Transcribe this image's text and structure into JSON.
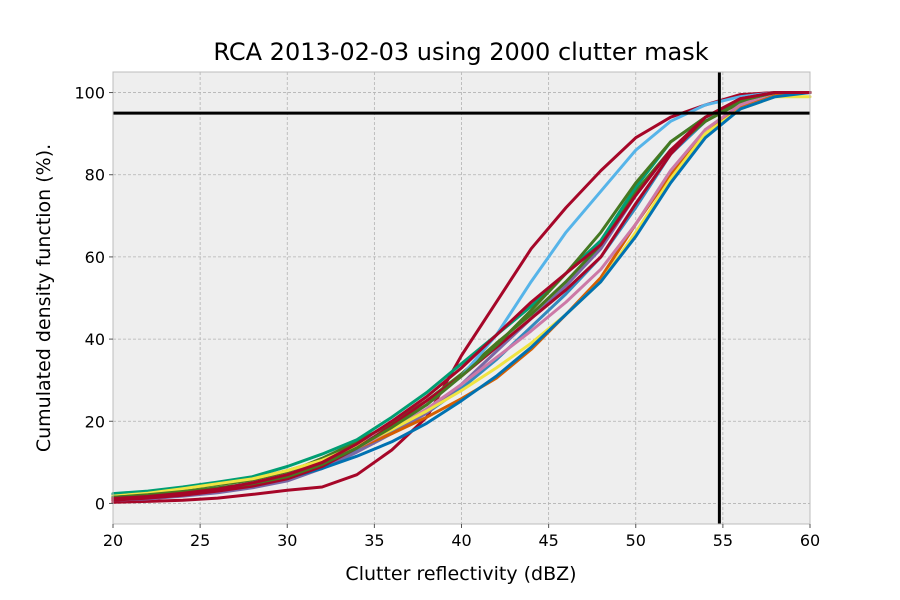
{
  "chart_data": {
    "type": "line",
    "title": "RCA 2013-02-03 using 2000 clutter mask",
    "xlabel": "Clutter reflectivity (dBZ)",
    "ylabel": "Cumulated density function (%).",
    "xlim": [
      20,
      60
    ],
    "ylim": [
      -5,
      105
    ],
    "xticks": [
      20,
      25,
      30,
      35,
      40,
      45,
      50,
      55,
      60
    ],
    "yticks": [
      0,
      20,
      40,
      60,
      80,
      100
    ],
    "grid": true,
    "legend": "none",
    "reference_lines": {
      "horizontal_y": 95,
      "vertical_x": 54.8,
      "color": "#000000"
    },
    "x": [
      20,
      22,
      24,
      26,
      28,
      30,
      32,
      34,
      36,
      38,
      40,
      42,
      44,
      46,
      48,
      50,
      52,
      54,
      56,
      58,
      60
    ],
    "series": [
      {
        "color": "#348ABD",
        "values": [
          1.2,
          1.5,
          2.2,
          3,
          4,
          6,
          9,
          13,
          17.5,
          22,
          28,
          35,
          43,
          51,
          60,
          72,
          85,
          93,
          98,
          100,
          100
        ]
      },
      {
        "color": "#A60628",
        "values": [
          0.3,
          0.5,
          0.8,
          1.3,
          2.2,
          3.2,
          4,
          7,
          13,
          21,
          36,
          49,
          62,
          72,
          81,
          89,
          94,
          97,
          99.5,
          100,
          100
        ]
      },
      {
        "color": "#7A68A6",
        "values": [
          0.8,
          1.1,
          1.8,
          2.6,
          3.8,
          5.5,
          8.5,
          12.5,
          17,
          22,
          29,
          37,
          45,
          53,
          62,
          75,
          86,
          93,
          98,
          100,
          100
        ]
      },
      {
        "color": "#467821",
        "values": [
          2,
          2.6,
          3.6,
          4.6,
          5.6,
          7.5,
          11,
          15,
          19.5,
          25,
          31.5,
          39,
          46,
          54,
          63,
          76,
          86,
          93,
          97.5,
          100,
          100
        ]
      },
      {
        "color": "#D55E00",
        "values": [
          1.6,
          2.5,
          3.8,
          5,
          6,
          8,
          10.5,
          13.5,
          17,
          21,
          25.5,
          30.5,
          37.5,
          46,
          55,
          68,
          80,
          90,
          96.5,
          99.5,
          100
        ]
      },
      {
        "color": "#CC79A7",
        "values": [
          1,
          1.4,
          2.1,
          3,
          4.5,
          6.5,
          9.5,
          13.5,
          18,
          23,
          29,
          35.5,
          42,
          49,
          57,
          68,
          81,
          91,
          97,
          100,
          100
        ]
      },
      {
        "color": "#56B4E9",
        "values": [
          1.4,
          1.9,
          2.6,
          3.6,
          5,
          7,
          10,
          14,
          18.5,
          24,
          31,
          41,
          54,
          66,
          76,
          86,
          93,
          97,
          99,
          100,
          100
        ]
      },
      {
        "color": "#009E73",
        "values": [
          2.4,
          3,
          4,
          5.2,
          6.5,
          9,
          12,
          15.5,
          21,
          27,
          34,
          41,
          48,
          56,
          64,
          77,
          88,
          94,
          98,
          100,
          100
        ]
      },
      {
        "color": "#F0E442",
        "values": [
          1.8,
          2.5,
          3.6,
          4.8,
          6,
          8,
          10.5,
          14,
          18,
          22.5,
          27.5,
          33,
          39,
          46,
          54,
          66,
          79,
          90,
          96,
          99,
          99
        ]
      },
      {
        "color": "#0072B2",
        "values": [
          1.5,
          2,
          2.8,
          3.6,
          4.6,
          6.2,
          8.5,
          11.5,
          15,
          19.5,
          25,
          31,
          38,
          46,
          54,
          65,
          78,
          89,
          96,
          99,
          100
        ]
      },
      {
        "color": "#A60628",
        "values": [
          0.8,
          1.3,
          2,
          3,
          4.2,
          6,
          9,
          13.5,
          19,
          25,
          31,
          38,
          45,
          52,
          60,
          73,
          85,
          94,
          98.5,
          100,
          100
        ]
      },
      {
        "color": "#467821",
        "values": [
          1.5,
          2.1,
          2.9,
          3.8,
          4.8,
          6.5,
          9.5,
          13.5,
          18.5,
          24,
          31,
          38.5,
          47,
          56,
          66,
          78,
          88,
          94,
          98,
          100,
          100
        ]
      },
      {
        "color": "#A60628",
        "values": [
          1.2,
          1.7,
          2.5,
          3.5,
          5,
          7,
          10,
          14.5,
          20,
          26,
          33,
          41,
          49,
          56,
          63,
          75,
          86,
          94,
          98.5,
          100,
          100
        ]
      }
    ]
  }
}
